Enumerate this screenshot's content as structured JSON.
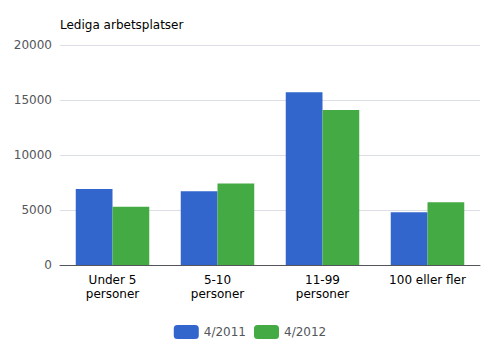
{
  "chart_data": {
    "type": "bar",
    "y_label": "Lediga arbetsplatser",
    "categories": [
      "Under 5\npersoner",
      "5-10\npersoner",
      "11-99\npersoner",
      "100 eller fler"
    ],
    "series": [
      {
        "name": "4/2011",
        "color": "#3366cc",
        "values": [
          6900,
          6700,
          15700,
          4800
        ]
      },
      {
        "name": "4/2012",
        "color": "#44aa44",
        "values": [
          5300,
          7400,
          14100,
          5700
        ]
      }
    ],
    "ylim": [
      0,
      20000
    ],
    "yticks": [
      0,
      5000,
      10000,
      15000,
      20000
    ],
    "grid": true,
    "legend": "bottom"
  }
}
